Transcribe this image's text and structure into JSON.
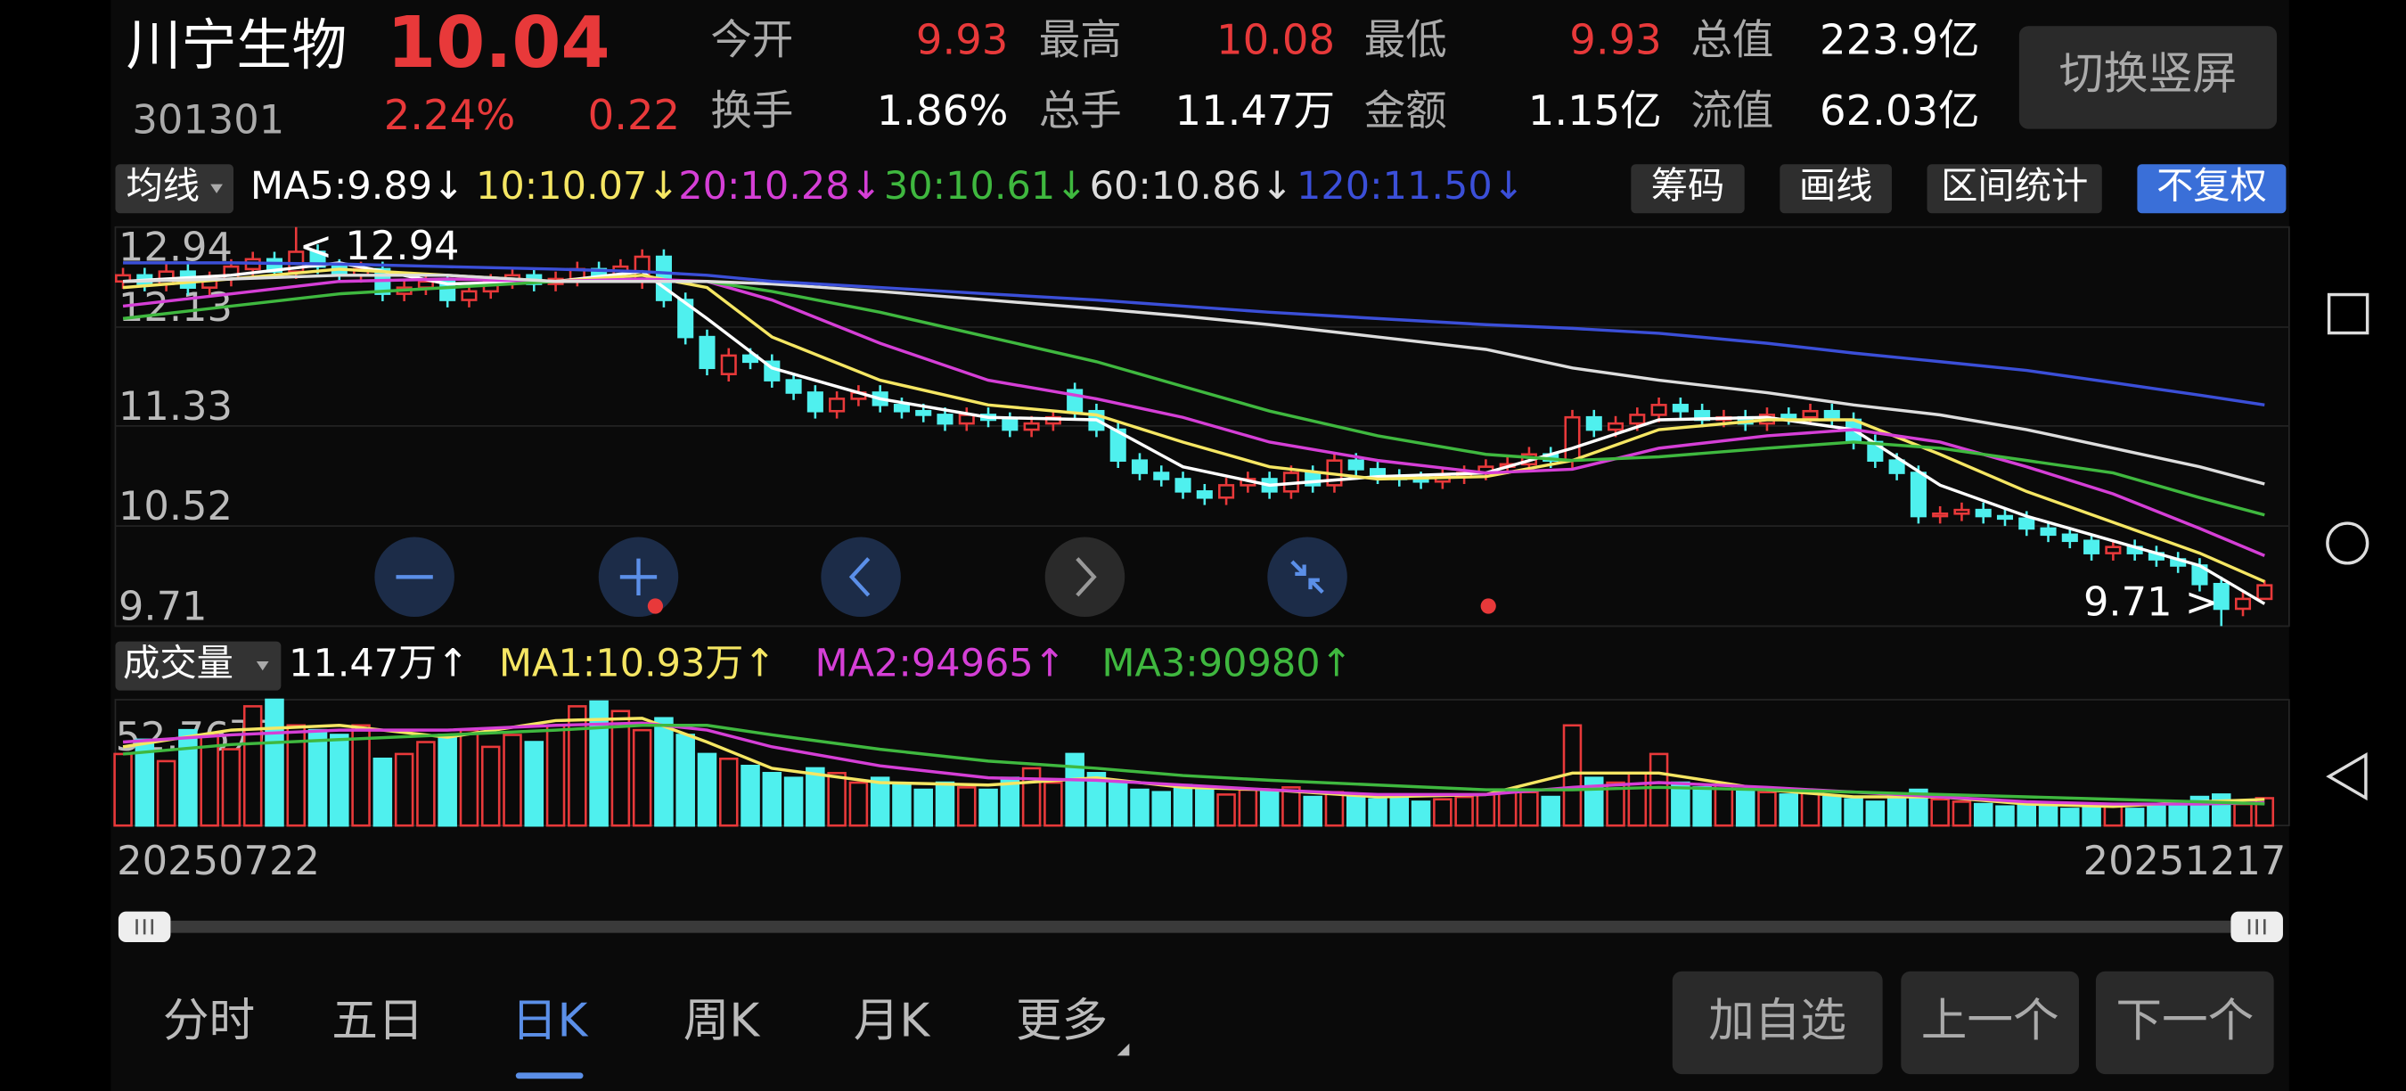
{
  "header": {
    "name": "川宁生物",
    "price": "10.04",
    "code": "301301",
    "change_pct": "2.24%",
    "change": "0.22",
    "quotes": [
      {
        "label": "今开",
        "value": "9.93",
        "color": "#e8393a"
      },
      {
        "label": "最高",
        "value": "10.08",
        "color": "#e8393a"
      },
      {
        "label": "最低",
        "value": "9.93",
        "color": "#e8393a"
      },
      {
        "label": "总值",
        "value": "223.9亿",
        "color": "#ffffff"
      },
      {
        "label": "换手",
        "value": "1.86%",
        "color": "#ffffff"
      },
      {
        "label": "总手",
        "value": "11.47万",
        "color": "#ffffff"
      },
      {
        "label": "金额",
        "value": "1.15亿",
        "color": "#ffffff"
      },
      {
        "label": "流值",
        "value": "62.03亿",
        "color": "#ffffff"
      }
    ]
  },
  "orientation_button": "切换竖屏",
  "ma_selector": "均线",
  "tools": [
    "筹码",
    "画线",
    "区间统计",
    "不复权"
  ],
  "volume_selector": "成交量",
  "volume_current": "11.47万↑",
  "tabs": [
    "分时",
    "五日",
    "日K",
    "周K",
    "月K",
    "更多"
  ],
  "selected_tab": 2,
  "actions": [
    "加自选",
    "上一个",
    "下一个"
  ],
  "chart_data": [
    {
      "type": "candlestick",
      "up_color": "#e8393a",
      "down_color": "#4ff0ee",
      "grid": true,
      "ylim": [
        9.71,
        12.94
      ],
      "yticks": [
        12.94,
        12.13,
        11.33,
        10.52,
        9.71
      ],
      "open": [
        12.5,
        12.55,
        12.48,
        12.58,
        12.45,
        12.52,
        12.6,
        12.68,
        12.58,
        12.74,
        12.62,
        12.55,
        12.6,
        12.4,
        12.45,
        12.5,
        12.35,
        12.42,
        12.5,
        12.55,
        12.48,
        12.52,
        12.6,
        12.55,
        12.5,
        12.7,
        12.35,
        12.05,
        11.75,
        11.9,
        11.85,
        11.7,
        11.6,
        11.45,
        11.55,
        11.6,
        11.5,
        11.45,
        11.42,
        11.35,
        11.42,
        11.38,
        11.3,
        11.35,
        11.62,
        11.45,
        11.3,
        11.05,
        10.95,
        10.9,
        10.8,
        10.75,
        10.85,
        10.9,
        10.8,
        10.95,
        10.85,
        11.05,
        10.98,
        10.92,
        10.9,
        10.88,
        10.92,
        10.95,
        11.0,
        11.02,
        11.1,
        11.05,
        11.4,
        11.3,
        11.35,
        11.42,
        11.5,
        11.45,
        11.38,
        11.4,
        11.35,
        11.42,
        11.4,
        11.45,
        11.38,
        11.2,
        11.05,
        10.95,
        10.6,
        10.62,
        10.65,
        10.6,
        10.58,
        10.5,
        10.45,
        10.4,
        10.3,
        10.35,
        10.3,
        10.25,
        10.2,
        10.05,
        9.85,
        9.93
      ],
      "high": [
        12.61,
        12.61,
        12.64,
        12.64,
        12.58,
        12.68,
        12.74,
        12.74,
        12.94,
        12.8,
        12.68,
        12.66,
        12.66,
        12.51,
        12.56,
        12.56,
        12.48,
        12.56,
        12.61,
        12.61,
        12.58,
        12.66,
        12.66,
        12.68,
        12.76,
        12.76,
        12.41,
        12.11,
        11.96,
        11.96,
        11.91,
        11.76,
        11.66,
        11.61,
        11.66,
        11.66,
        11.56,
        11.51,
        11.48,
        11.48,
        11.48,
        11.44,
        11.41,
        11.46,
        11.68,
        11.51,
        11.36,
        11.11,
        11.01,
        10.96,
        10.86,
        10.91,
        10.96,
        10.96,
        11.01,
        11.01,
        11.11,
        11.11,
        11.04,
        10.98,
        10.96,
        10.98,
        11.01,
        11.06,
        11.08,
        11.16,
        11.16,
        11.46,
        11.46,
        11.41,
        11.48,
        11.56,
        11.56,
        11.51,
        11.46,
        11.46,
        11.48,
        11.48,
        11.51,
        11.51,
        11.44,
        11.26,
        11.11,
        11.01,
        10.68,
        10.71,
        10.71,
        10.66,
        10.64,
        10.56,
        10.51,
        10.46,
        10.41,
        10.41,
        10.36,
        10.31,
        10.26,
        10.11,
        9.99,
        10.08
      ],
      "low": [
        12.44,
        12.42,
        12.42,
        12.39,
        12.39,
        12.46,
        12.54,
        12.52,
        12.52,
        12.56,
        12.49,
        12.49,
        12.34,
        12.34,
        12.39,
        12.29,
        12.29,
        12.36,
        12.44,
        12.42,
        12.42,
        12.46,
        12.49,
        12.49,
        12.44,
        12.29,
        11.99,
        11.74,
        11.69,
        11.79,
        11.64,
        11.54,
        11.39,
        11.39,
        11.49,
        11.44,
        11.39,
        11.36,
        11.29,
        11.29,
        11.32,
        11.24,
        11.24,
        11.29,
        11.39,
        11.24,
        10.99,
        10.89,
        10.84,
        10.74,
        10.69,
        10.69,
        10.79,
        10.74,
        10.74,
        10.79,
        10.79,
        10.92,
        10.86,
        10.84,
        10.82,
        10.82,
        10.86,
        10.89,
        10.94,
        10.96,
        10.99,
        10.99,
        11.24,
        11.24,
        11.29,
        11.36,
        11.39,
        11.32,
        11.32,
        11.29,
        11.29,
        11.34,
        11.34,
        11.32,
        11.14,
        10.99,
        10.89,
        10.54,
        10.54,
        10.56,
        10.54,
        10.52,
        10.44,
        10.39,
        10.34,
        10.24,
        10.24,
        10.24,
        10.19,
        10.14,
        9.99,
        9.71,
        9.79,
        9.93
      ],
      "close": [
        12.55,
        12.48,
        12.58,
        12.45,
        12.52,
        12.62,
        12.68,
        12.58,
        12.74,
        12.62,
        12.55,
        12.6,
        12.4,
        12.45,
        12.5,
        12.35,
        12.42,
        12.5,
        12.55,
        12.48,
        12.52,
        12.6,
        12.55,
        12.62,
        12.7,
        12.35,
        12.05,
        11.8,
        11.9,
        11.85,
        11.7,
        11.6,
        11.45,
        11.55,
        11.6,
        11.5,
        11.45,
        11.42,
        11.35,
        11.42,
        11.38,
        11.3,
        11.35,
        11.4,
        11.45,
        11.3,
        11.05,
        10.95,
        10.9,
        10.8,
        10.75,
        10.85,
        10.9,
        10.8,
        10.95,
        10.85,
        11.05,
        10.98,
        10.92,
        10.9,
        10.88,
        10.92,
        10.95,
        11.0,
        11.02,
        11.1,
        11.05,
        11.4,
        11.3,
        11.35,
        11.42,
        11.5,
        11.45,
        11.38,
        11.4,
        11.35,
        11.42,
        11.4,
        11.45,
        11.38,
        11.2,
        11.05,
        10.95,
        10.6,
        10.62,
        10.65,
        10.6,
        10.58,
        10.5,
        10.45,
        10.4,
        10.3,
        10.35,
        10.3,
        10.25,
        10.2,
        10.05,
        9.85,
        9.93,
        10.04
      ],
      "annotations": [
        {
          "text": "< 12.94",
          "x": 8,
          "y": 12.94,
          "side": "right"
        },
        {
          "text": "9.71 >",
          "x": 97,
          "y": 9.71,
          "side": "left"
        }
      ],
      "series": [
        {
          "name": "MA5:9.89↓",
          "color": "#ffffff",
          "x": [
            0,
            5,
            10,
            15,
            20,
            24,
            27,
            30,
            35,
            40,
            45,
            49,
            53,
            58,
            63,
            67,
            71,
            76,
            80,
            84,
            88,
            92,
            96,
            99
          ],
          "values": [
            12.5,
            12.55,
            12.65,
            12.48,
            12.5,
            12.58,
            12.2,
            11.8,
            11.55,
            11.4,
            11.38,
            11.0,
            10.85,
            10.92,
            10.95,
            11.15,
            11.38,
            11.4,
            11.3,
            10.85,
            10.6,
            10.4,
            10.2,
            9.89
          ]
        },
        {
          "name": "10:10.07↓",
          "color": "#f5e663",
          "x": [
            0,
            5,
            10,
            15,
            20,
            24,
            27,
            30,
            35,
            40,
            45,
            49,
            53,
            58,
            63,
            67,
            71,
            76,
            80,
            84,
            88,
            92,
            96,
            99
          ],
          "values": [
            12.45,
            12.52,
            12.6,
            12.55,
            12.5,
            12.55,
            12.45,
            12.05,
            11.7,
            11.5,
            11.42,
            11.2,
            11.0,
            10.9,
            10.92,
            11.05,
            11.3,
            11.38,
            11.38,
            11.1,
            10.8,
            10.55,
            10.3,
            10.07
          ]
        },
        {
          "name": "20:10.28↓",
          "color": "#d53fd6",
          "x": [
            0,
            5,
            10,
            15,
            20,
            24,
            27,
            30,
            35,
            40,
            45,
            49,
            53,
            58,
            63,
            67,
            71,
            76,
            80,
            84,
            88,
            92,
            96,
            99
          ],
          "values": [
            12.3,
            12.4,
            12.5,
            12.52,
            12.5,
            12.52,
            12.5,
            12.35,
            12.0,
            11.7,
            11.55,
            11.4,
            11.2,
            11.05,
            10.95,
            10.98,
            11.15,
            11.25,
            11.3,
            11.2,
            11.0,
            10.78,
            10.5,
            10.28
          ]
        },
        {
          "name": "30:10.61↓",
          "color": "#3fb83f",
          "x": [
            0,
            5,
            10,
            15,
            20,
            24,
            27,
            30,
            35,
            40,
            45,
            49,
            53,
            58,
            63,
            67,
            71,
            76,
            80,
            84,
            88,
            92,
            96,
            99
          ],
          "values": [
            12.2,
            12.3,
            12.4,
            12.45,
            12.5,
            12.5,
            12.5,
            12.42,
            12.25,
            12.05,
            11.85,
            11.65,
            11.45,
            11.25,
            11.1,
            11.05,
            11.08,
            11.15,
            11.2,
            11.15,
            11.05,
            10.95,
            10.75,
            10.61
          ]
        },
        {
          "name": "60:10.86↓",
          "color": "#dddddd",
          "x": [
            0,
            5,
            10,
            15,
            20,
            24,
            27,
            30,
            35,
            40,
            45,
            49,
            53,
            58,
            63,
            67,
            71,
            76,
            80,
            84,
            88,
            92,
            96,
            99
          ],
          "values": [
            12.5,
            12.52,
            12.55,
            12.55,
            12.5,
            12.5,
            12.5,
            12.48,
            12.42,
            12.35,
            12.28,
            12.22,
            12.15,
            12.05,
            11.95,
            11.8,
            11.7,
            11.6,
            11.5,
            11.42,
            11.3,
            11.15,
            11.0,
            10.86
          ]
        },
        {
          "name": "120:11.50↓",
          "color": "#3b4fd8",
          "x": [
            0,
            5,
            10,
            15,
            20,
            24,
            27,
            30,
            35,
            40,
            45,
            49,
            53,
            58,
            63,
            67,
            71,
            76,
            80,
            84,
            88,
            92,
            96,
            99
          ],
          "values": [
            12.65,
            12.65,
            12.64,
            12.62,
            12.6,
            12.58,
            12.55,
            12.5,
            12.45,
            12.4,
            12.35,
            12.3,
            12.25,
            12.2,
            12.15,
            12.12,
            12.08,
            12.0,
            11.92,
            11.85,
            11.78,
            11.68,
            11.58,
            11.5
          ]
        }
      ]
    },
    {
      "type": "bar",
      "categories": [
        "20250722",
        null,
        null,
        null,
        null,
        null,
        null,
        null,
        null,
        null,
        null,
        null,
        null,
        null,
        null,
        null,
        null,
        null,
        null,
        null,
        null,
        null,
        null,
        null,
        null,
        null,
        null,
        null,
        null,
        null,
        null,
        null,
        null,
        null,
        null,
        null,
        null,
        null,
        null,
        null,
        null,
        null,
        null,
        null,
        null,
        null,
        null,
        null,
        null,
        null,
        null,
        null,
        null,
        null,
        null,
        null,
        null,
        null,
        null,
        null,
        null,
        null,
        null,
        null,
        null,
        null,
        null,
        null,
        null,
        null,
        null,
        null,
        null,
        null,
        null,
        null,
        null,
        null,
        null,
        null,
        null,
        null,
        null,
        null,
        null,
        null,
        null,
        null,
        null,
        null,
        null,
        null,
        null,
        null,
        null,
        null,
        null,
        null,
        null,
        "20251217"
      ],
      "values": [
        30,
        36,
        27,
        40,
        38,
        32,
        50,
        52.76,
        42,
        40,
        38,
        42,
        28,
        30,
        35,
        38,
        40,
        33,
        38,
        35,
        42,
        50,
        52,
        48,
        40,
        45,
        38,
        30,
        28,
        25,
        22,
        20,
        24,
        22,
        18,
        20,
        17,
        15,
        18,
        16,
        15,
        20,
        24,
        18,
        30,
        22,
        18,
        15,
        14,
        17,
        15,
        13,
        15,
        14,
        16,
        12,
        14,
        12,
        11,
        12,
        10,
        11,
        12,
        13,
        15,
        14,
        12,
        42,
        20,
        18,
        22,
        30,
        18,
        16,
        17,
        15,
        14,
        13,
        14,
        12,
        11,
        10,
        12,
        15,
        11,
        10,
        9,
        8,
        9,
        8,
        7,
        9,
        8,
        7,
        9,
        10,
        12,
        13,
        9,
        11.47
      ],
      "ylim": [
        0,
        52.76
      ],
      "yticks": [
        {
          "value": 52.76,
          "label": "52.76万"
        }
      ],
      "series": [
        {
          "name": "MA1:10.93万↑",
          "color": "#f5e663",
          "x": [
            0,
            5,
            10,
            15,
            20,
            24,
            27,
            30,
            35,
            40,
            45,
            49,
            53,
            58,
            63,
            67,
            71,
            76,
            80,
            84,
            88,
            92,
            96,
            99
          ],
          "values": [
            33,
            40,
            42,
            37,
            44,
            45,
            35,
            24,
            18,
            17,
            20,
            16,
            15,
            12,
            13,
            22,
            22,
            15,
            12,
            12,
            9,
            8,
            10,
            10.93
          ]
        },
        {
          "name": "MA2:94965↑",
          "color": "#d53fd6",
          "x": [
            0,
            5,
            10,
            15,
            20,
            24,
            27,
            30,
            35,
            40,
            45,
            49,
            53,
            58,
            63,
            67,
            71,
            76,
            80,
            84,
            88,
            92,
            96,
            99
          ],
          "values": [
            35,
            38,
            40,
            40,
            42,
            43,
            40,
            33,
            25,
            20,
            19,
            17,
            15,
            13,
            13,
            16,
            18,
            16,
            14,
            12,
            10,
            9,
            9,
            9.4965
          ]
        },
        {
          "name": "MA3:90980↑",
          "color": "#3fb83f",
          "x": [
            0,
            5,
            10,
            15,
            20,
            24,
            27,
            30,
            35,
            40,
            45,
            49,
            53,
            58,
            63,
            67,
            71,
            76,
            80,
            84,
            88,
            92,
            96,
            99
          ],
          "values": [
            30,
            34,
            36,
            38,
            40,
            42,
            42,
            38,
            32,
            27,
            24,
            21,
            19,
            17,
            15,
            15,
            16,
            15,
            14,
            13,
            12,
            11,
            10,
            9.098
          ]
        }
      ]
    }
  ]
}
